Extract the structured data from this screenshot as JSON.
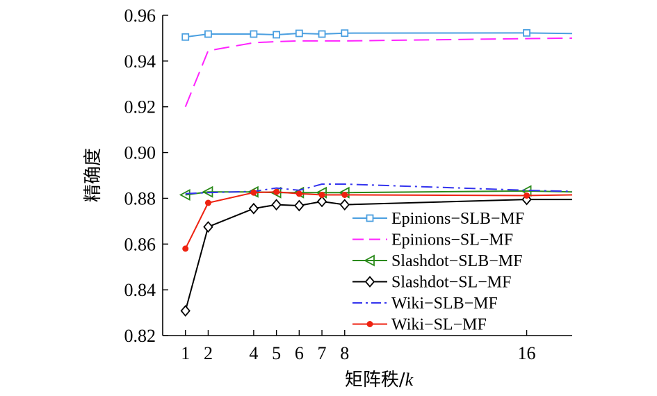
{
  "chart_data": {
    "type": "line",
    "title": "",
    "xlabel_main": "矩阵秩/",
    "xlabel_var": "k",
    "ylabel": "精确度",
    "xlim": [
      0,
      18
    ],
    "ylim": [
      0.82,
      0.96
    ],
    "xticks": [
      1,
      2,
      4,
      5,
      6,
      7,
      8,
      16
    ],
    "yticks": [
      "0.82",
      "0.84",
      "0.86",
      "0.88",
      "0.90",
      "0.92",
      "0.94",
      "0.96"
    ],
    "legend_position": "lower-right",
    "series": [
      {
        "name": "Epinions−SLB−MF",
        "color": "#4a9fe0",
        "dash": "solid",
        "marker": "square",
        "x": [
          1,
          2,
          4,
          5,
          6,
          7,
          8,
          16,
          18
        ],
        "y": [
          0.9505,
          0.9518,
          0.9518,
          0.9515,
          0.9521,
          0.9518,
          0.9522,
          0.9523,
          0.952
        ],
        "marker_x": [
          1,
          2,
          4,
          5,
          6,
          7,
          8,
          16
        ]
      },
      {
        "name": "Epinions−SL−MF",
        "color": "#ff22ff",
        "dash": "dashed",
        "marker": "none",
        "x": [
          1,
          2,
          4,
          5,
          6,
          7,
          8,
          16,
          18
        ],
        "y": [
          0.92,
          0.9445,
          0.948,
          0.9485,
          0.9488,
          0.9488,
          0.9488,
          0.9498,
          0.95
        ],
        "marker_x": []
      },
      {
        "name": "Slashdot−SLB−MF",
        "color": "#2a8a1a",
        "dash": "solid",
        "marker": "triangle-left",
        "x": [
          1,
          2,
          4,
          5,
          6,
          7,
          8,
          16,
          18
        ],
        "y": [
          0.8815,
          0.8828,
          0.8828,
          0.8825,
          0.8825,
          0.8825,
          0.8825,
          0.8832,
          0.8828
        ],
        "marker_x": [
          1,
          2,
          4,
          5,
          6,
          7,
          8,
          16
        ]
      },
      {
        "name": "Slashdot−SL−MF",
        "color": "#000000",
        "dash": "solid",
        "marker": "diamond",
        "x": [
          1,
          2,
          4,
          5,
          6,
          7,
          8,
          16,
          18
        ],
        "y": [
          0.8308,
          0.8675,
          0.8755,
          0.8772,
          0.8768,
          0.8786,
          0.8772,
          0.8795,
          0.8795
        ],
        "marker_x": [
          1,
          2,
          4,
          5,
          6,
          7,
          8,
          16
        ]
      },
      {
        "name": "Wiki−SLB−MF",
        "color": "#3333ee",
        "dash": "dashdot",
        "marker": "none",
        "x": [
          1,
          2,
          4,
          5,
          6,
          7,
          8,
          16,
          18
        ],
        "y": [
          0.882,
          0.8825,
          0.883,
          0.8845,
          0.8835,
          0.8862,
          0.8862,
          0.8835,
          0.883
        ],
        "marker_x": []
      },
      {
        "name": "Wiki−SL−MF",
        "color": "#ee2211",
        "dash": "solid",
        "marker": "dot",
        "x": [
          1,
          2,
          4,
          5,
          6,
          7,
          8,
          16,
          18
        ],
        "y": [
          0.858,
          0.878,
          0.8825,
          0.8828,
          0.882,
          0.8815,
          0.8815,
          0.8812,
          0.8815
        ],
        "marker_x": [
          1,
          2,
          4,
          5,
          6,
          7,
          8,
          16
        ]
      }
    ]
  }
}
